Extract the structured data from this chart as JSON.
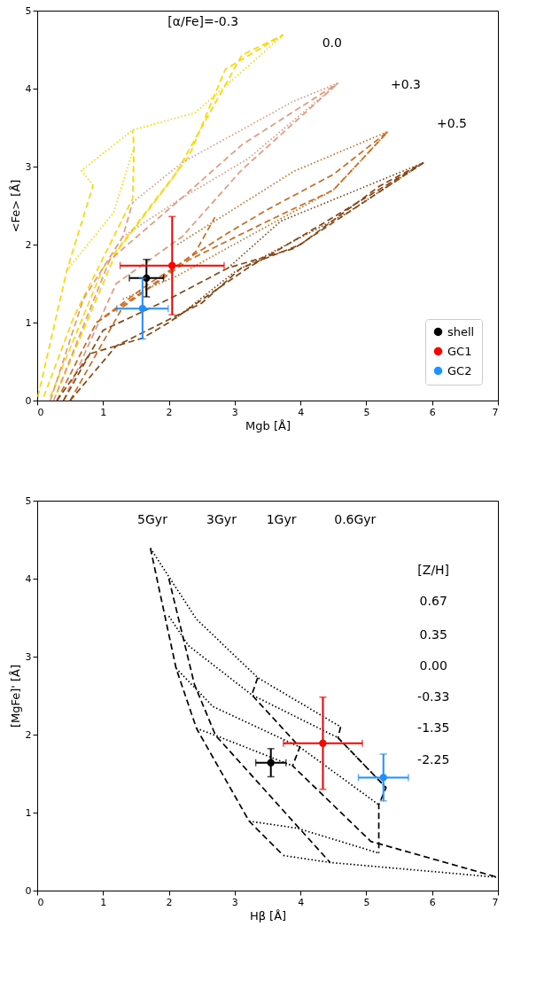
{
  "chart_data": [
    {
      "type": "line",
      "xlabel": "Mgb [Å]",
      "ylabel": "<Fe> [Å]",
      "xlim": [
        0,
        7
      ],
      "ylim": [
        0,
        5
      ],
      "xticks": [
        0,
        1,
        2,
        3,
        4,
        5,
        6,
        7
      ],
      "yticks": [
        0,
        1,
        2,
        3,
        4,
        5
      ],
      "grid": false,
      "legend": "bottom right",
      "annotations": [
        "[α/Fe]=-0.3",
        "0.0",
        "+0.3",
        "+0.5"
      ],
      "series": [
        {
          "color": "#ffd700",
          "line_style": "dashed",
          "x": [
            0.01,
            0.45,
            0.85
          ],
          "values": [
            0.05,
            1.67,
            2.76
          ]
        },
        {
          "color": "#ffd700",
          "line_style": "dashed",
          "x": [
            0.1,
            0.56,
            1.45,
            1.47,
            1.45
          ],
          "values": [
            0.05,
            1.08,
            2.59,
            3.25,
            3.47
          ]
        },
        {
          "color": "#ffd700",
          "line_style": "dashed",
          "x": [
            0.2,
            1.0,
            2.31,
            2.86,
            3.74
          ],
          "values": [
            0.05,
            1.7,
            3.14,
            4.25,
            4.69
          ]
        },
        {
          "color": "#ffd700",
          "line_style": "dashed",
          "x": [
            0.3,
            1.2,
            2.1,
            3.11,
            3.74
          ],
          "values": [
            0.1,
            1.9,
            2.9,
            4.43,
            4.69
          ]
        },
        {
          "color": "#ffd700",
          "line_style": "dotted",
          "x": [
            0.85,
            0.67,
            1.45,
            2.4,
            3.74
          ],
          "values": [
            2.76,
            2.95,
            3.47,
            3.69,
            4.69
          ]
        },
        {
          "color": "#ffd700",
          "line_style": "dotted",
          "x": [
            0.45,
            1.16,
            1.47
          ],
          "values": [
            1.67,
            2.41,
            3.25
          ]
        },
        {
          "color": "#e9967a",
          "line_style": "dashed",
          "x": [
            0.2,
            0.7,
            1.3,
            1.45
          ],
          "values": [
            0.0,
            1.3,
            2.1,
            2.54
          ]
        },
        {
          "color": "#e9967a",
          "line_style": "dashed",
          "x": [
            0.4,
            1.2,
            2.2,
            3.11,
            4.57
          ],
          "values": [
            0.0,
            1.5,
            2.1,
            2.96,
            4.07
          ]
        },
        {
          "color": "#e9967a",
          "line_style": "dashed",
          "x": [
            0.25,
            1.1,
            2.2,
            3.11,
            4.57
          ],
          "values": [
            0.0,
            1.8,
            2.6,
            3.28,
            4.07
          ]
        },
        {
          "color": "#e9967a",
          "line_style": "dotted",
          "x": [
            1.45,
            2.2,
            3.9,
            4.57
          ],
          "values": [
            2.54,
            3.05,
            3.84,
            4.07
          ]
        },
        {
          "color": "#e9967a",
          "line_style": "dotted",
          "x": [
            1.3,
            2.2,
            3.2,
            4.57
          ],
          "values": [
            2.1,
            2.6,
            3.1,
            4.07
          ]
        },
        {
          "color": "#d2691e",
          "line_style": "dashed",
          "x": [
            0.3,
            0.9,
            1.7,
            2.4,
            2.7
          ],
          "values": [
            0.0,
            1.0,
            1.45,
            1.9,
            2.35
          ]
        },
        {
          "color": "#d2691e",
          "line_style": "dashed",
          "x": [
            0.9,
            1.7,
            2.9,
            3.5,
            4.5,
            5.33
          ],
          "values": [
            1.0,
            1.5,
            2.15,
            2.45,
            2.9,
            3.45
          ]
        },
        {
          "color": "#d2691e",
          "line_style": "dashed",
          "x": [
            0.5,
            1.3,
            2.3,
            3.5,
            4.5,
            5.33
          ],
          "values": [
            0.0,
            1.2,
            1.8,
            2.3,
            2.7,
            3.45
          ]
        },
        {
          "color": "#d2691e",
          "line_style": "dotted",
          "x": [
            2.13,
            3.9,
            5.33
          ],
          "values": [
            2.0,
            2.94,
            3.45
          ]
        },
        {
          "color": "#d2691e",
          "line_style": "dotted",
          "x": [
            1.3,
            2.13,
            3.2,
            4.5,
            5.33
          ],
          "values": [
            1.3,
            1.6,
            2.1,
            2.7,
            3.45
          ]
        },
        {
          "color": "#8b4513",
          "line_style": "dashed",
          "x": [
            0.3,
            0.8,
            1.6,
            2.0,
            3.2,
            4.4,
            5.87
          ],
          "values": [
            0.0,
            0.6,
            0.8,
            1.0,
            1.7,
            2.3,
            3.05
          ]
        },
        {
          "color": "#8b4513",
          "line_style": "dashed",
          "x": [
            0.4,
            1.0,
            2.0,
            2.9,
            3.9,
            5.87
          ],
          "values": [
            0.0,
            0.9,
            1.3,
            1.7,
            1.95,
            3.05
          ]
        },
        {
          "color": "#8b4513",
          "line_style": "dashed",
          "x": [
            0.5,
            1.2,
            2.5,
            3.1,
            4.0,
            5.2,
            5.87
          ],
          "values": [
            0.0,
            0.7,
            1.25,
            1.7,
            2.0,
            2.75,
            3.05
          ]
        },
        {
          "color": "#8b4513",
          "line_style": "dotted",
          "x": [
            2.9,
            3.7,
            5.87
          ],
          "values": [
            1.7,
            2.3,
            3.05
          ]
        },
        {
          "color": "#8b4513",
          "line_style": "dotted",
          "x": [
            2.1,
            3.0,
            4.7,
            5.87
          ],
          "values": [
            1.05,
            1.65,
            2.4,
            3.05
          ]
        },
        {
          "type": "scatter",
          "name": "shell",
          "color": "#000000",
          "marker": "circle",
          "x": [
            1.66
          ],
          "values": [
            1.57
          ],
          "errors": [
            0.24
          ],
          "xerrors": [
            0.26
          ]
        },
        {
          "type": "scatter",
          "name": "GC1",
          "color": "#ff0000",
          "marker": "circle",
          "x": [
            2.05
          ],
          "values": [
            1.73
          ],
          "errors": [
            0.63
          ],
          "xerrors": [
            0.79
          ]
        },
        {
          "type": "scatter",
          "name": "GC2",
          "color": "#1e90ff",
          "marker": "circle",
          "x": [
            1.6
          ],
          "values": [
            1.18
          ],
          "errors": [
            0.39
          ],
          "xerrors": [
            0.39
          ]
        }
      ]
    },
    {
      "type": "line",
      "xlabel": "Hβ [Å]",
      "ylabel": "[MgFe]' [Å]",
      "xlim": [
        0,
        7
      ],
      "ylim": [
        0,
        5
      ],
      "xticks": [
        0,
        1,
        2,
        3,
        4,
        5,
        6,
        7
      ],
      "yticks": [
        0,
        1,
        2,
        3,
        4,
        5
      ],
      "grid": false,
      "annotations": [
        "5Gyr",
        "3Gyr",
        "1Gyr",
        "0.6Gyr",
        "[Z/H]",
        "0.67",
        "0.35",
        "0.00",
        "-0.33",
        "-1.35",
        "-2.25"
      ],
      "series": [
        {
          "color": "#000000",
          "line_style": "dashed",
          "x": [
            1.72,
            2.11,
            2.42,
            3.22,
            3.74
          ],
          "values": [
            4.39,
            2.85,
            2.08,
            0.89,
            0.45
          ]
        },
        {
          "color": "#000000",
          "line_style": "dashed",
          "x": [
            2.0,
            2.39,
            2.71,
            4.45
          ],
          "values": [
            4.0,
            2.64,
            1.99,
            0.36
          ]
        },
        {
          "color": "#000000",
          "line_style": "dashed",
          "x": [
            3.35,
            3.26,
            3.99,
            3.88,
            5.07,
            7.0
          ],
          "values": [
            2.73,
            2.51,
            1.84,
            1.6,
            0.63,
            0.17
          ]
        },
        {
          "color": "#000000",
          "line_style": "dashed",
          "x": [
            4.61,
            4.57,
            5.3,
            5.19,
            5.19
          ],
          "values": [
            2.1,
            1.96,
            1.32,
            1.1,
            0.48
          ]
        },
        {
          "color": "#000000",
          "line_style": "dotted",
          "x": [
            1.72,
            2.42,
            3.35,
            4.61
          ],
          "values": [
            4.39,
            3.48,
            2.73,
            2.1
          ]
        },
        {
          "color": "#000000",
          "line_style": "dotted",
          "x": [
            2.0,
            2.3,
            3.26,
            4.57,
            5.3
          ],
          "values": [
            3.52,
            3.14,
            2.51,
            1.96,
            1.32
          ]
        },
        {
          "color": "#000000",
          "line_style": "dotted",
          "x": [
            2.11,
            2.67,
            3.99,
            5.19
          ],
          "values": [
            2.85,
            2.36,
            1.84,
            1.1
          ]
        },
        {
          "color": "#000000",
          "line_style": "dotted",
          "x": [
            2.42,
            2.71,
            3.88
          ],
          "values": [
            2.08,
            1.99,
            1.6
          ]
        },
        {
          "color": "#000000",
          "line_style": "dotted",
          "x": [
            3.22,
            3.95,
            5.19
          ],
          "values": [
            0.89,
            0.8,
            0.48
          ]
        },
        {
          "color": "#000000",
          "line_style": "dotted",
          "x": [
            3.74,
            4.45,
            7.0
          ],
          "values": [
            0.45,
            0.36,
            0.17
          ]
        },
        {
          "type": "scatter",
          "color": "#000000",
          "marker": "circle",
          "x": [
            3.55
          ],
          "values": [
            1.64
          ],
          "errors": [
            0.18
          ],
          "xerrors": [
            0.23
          ]
        },
        {
          "type": "scatter",
          "color": "#ff0000",
          "marker": "circle",
          "x": [
            4.34
          ],
          "values": [
            1.89
          ],
          "errors": [
            0.59
          ],
          "xerrors": [
            0.6
          ]
        },
        {
          "type": "scatter",
          "color": "#1e90ff",
          "marker": "circle",
          "x": [
            5.26
          ],
          "values": [
            1.45
          ],
          "errors": [
            0.3
          ],
          "xerrors": [
            0.38
          ]
        }
      ]
    }
  ]
}
